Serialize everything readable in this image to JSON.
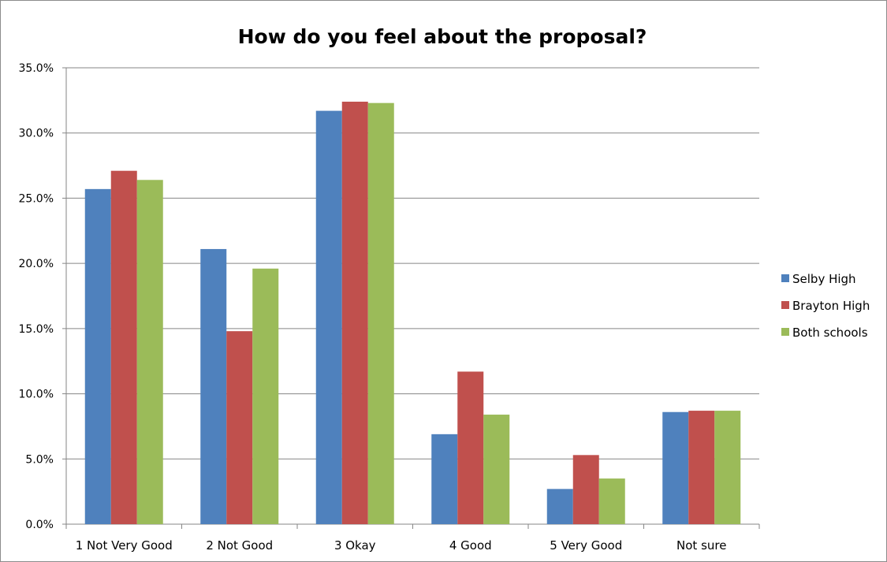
{
  "chart_data": {
    "type": "bar",
    "title": "How do you feel about the proposal?",
    "xlabel": "",
    "ylabel": "",
    "categories": [
      "1 Not Very Good",
      "2 Not Good",
      "3 Okay",
      "4 Good",
      "5 Very Good",
      "Not sure"
    ],
    "series": [
      {
        "name": "Selby High",
        "color": "#4f81bd",
        "values": [
          25.7,
          21.1,
          31.7,
          6.9,
          2.7,
          8.6
        ]
      },
      {
        "name": "Brayton High",
        "color": "#c0504d",
        "values": [
          27.1,
          14.8,
          32.4,
          11.7,
          5.3,
          8.7
        ]
      },
      {
        "name": "Both schools",
        "color": "#9bbb59",
        "values": [
          26.4,
          19.6,
          32.3,
          8.4,
          3.5,
          8.7
        ]
      }
    ],
    "ylim": [
      0,
      35
    ],
    "yticks": [
      "0.0%",
      "5.0%",
      "10.0%",
      "15.0%",
      "20.0%",
      "25.0%",
      "30.0%",
      "35.0%"
    ],
    "grid": true,
    "legend_position": "right"
  }
}
